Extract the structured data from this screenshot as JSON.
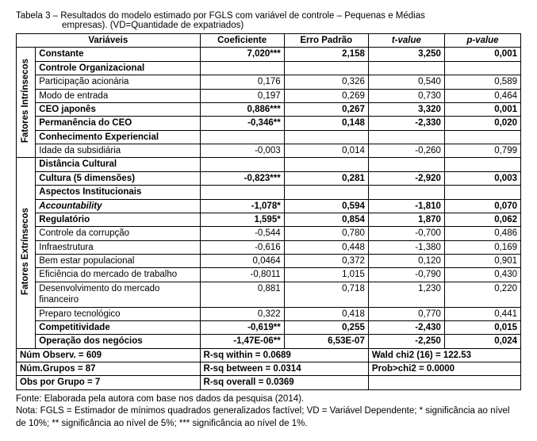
{
  "caption": {
    "line1": "Tabela 3 – Resultados do modelo estimado por FGLS com variável de controle – Pequenas e Médias",
    "line2": "empresas). (VD=Quantidade de expatriados)"
  },
  "headers": {
    "var": "Variáveis",
    "coef": "Coeficiente",
    "se": "Erro Padrão",
    "t": "t-value",
    "p": "p-value"
  },
  "side": {
    "intr": "Fatores Intrínsecos",
    "extr": "Fatores Extrínsecos"
  },
  "rows": {
    "constante": {
      "label": "Constante",
      "coef": "7,020***",
      "se": "2,158",
      "t": "3,250",
      "p": "0,001",
      "b": true
    },
    "grp_ctrl": {
      "label": "Controle Organizacional"
    },
    "partic": {
      "label": "Participação acionária",
      "coef": "0,176",
      "se": "0,326",
      "t": "0,540",
      "p": "0,589"
    },
    "modo": {
      "label": "Modo de entrada",
      "coef": "0,197",
      "se": "0,269",
      "t": "0,730",
      "p": "0,464"
    },
    "ceojap": {
      "label": "CEO japonês",
      "coef": "0,886***",
      "se": "0,267",
      "t": "3,320",
      "p": "0,001",
      "b": true
    },
    "permceo": {
      "label": "Permanência do CEO",
      "coef": "-0,346**",
      "se": "0,148",
      "t": "-2,330",
      "p": "0,020",
      "b": true
    },
    "grp_conh": {
      "label": "Conhecimento Experiencial"
    },
    "idade": {
      "label": "Idade da subsidiária",
      "coef": "-0,003",
      "se": "0,014",
      "t": "-0,260",
      "p": "0,799"
    },
    "grp_dist": {
      "label": "Distância Cultural"
    },
    "cult5": {
      "label": "Cultura (5 dimensões)",
      "coef": "-0,823***",
      "se": "0,281",
      "t": "-2,920",
      "p": "0,003",
      "b": true
    },
    "grp_inst": {
      "label": "Aspectos Institucionais"
    },
    "account": {
      "label": "Accountability",
      "coef": "-1,078*",
      "se": "0,594",
      "t": "-1,810",
      "p": "0,070",
      "b": true,
      "i": true
    },
    "regul": {
      "label": "Regulatório",
      "coef": "1,595*",
      "se": "0,854",
      "t": "1,870",
      "p": "0,062",
      "b": true
    },
    "corrup": {
      "label": "Controle da corrupção",
      "coef": "-0,544",
      "se": "0,780",
      "t": "-0,700",
      "p": "0,486"
    },
    "infra": {
      "label": "Infraestrutura",
      "coef": "-0,616",
      "se": "0,448",
      "t": "-1,380",
      "p": "0,169"
    },
    "bemestar": {
      "label": "Bem estar populacional",
      "coef": "0,0464",
      "se": "0,372",
      "t": "0,120",
      "p": "0,901"
    },
    "eficmt": {
      "label": "Eficiência do mercado de trabalho",
      "coef": "-0,8011",
      "se": "1,015",
      "t": "-0,790",
      "p": "0,430"
    },
    "desmf": {
      "label": "Desenvolvimento do mercado financeiro",
      "coef": "0,881",
      "se": "0,718",
      "t": "1,230",
      "p": "0,220"
    },
    "preptec": {
      "label": "Preparo tecnológico",
      "coef": "0,322",
      "se": "0,418",
      "t": "0,770",
      "p": "0,441"
    },
    "compet": {
      "label": "Competitividade",
      "coef": "-0,619**",
      "se": "0,255",
      "t": "-2,430",
      "p": "0,015",
      "b": true
    },
    "oper": {
      "label": "Operação dos negócios",
      "coef": "-1,47E-06**",
      "se": "6,53E-07",
      "t": "-2,250",
      "p": "0,024",
      "b": true
    }
  },
  "summary": {
    "l1a": "Núm Observ. = 609",
    "l1b": "R-sq within = 0.0689",
    "l1c": "Wald chi2 (16) = 122.53",
    "l2a": "Núm.Grupos = 87",
    "l2b": "R-sq between = 0.0314",
    "l2c": "Prob>chi2 = 0.0000",
    "l3a": "Obs por Grupo = 7",
    "l3b": "R-sq overall = 0.0369"
  },
  "footnotes": {
    "f1": "Fonte: Elaborada pela autora com base nos dados da pesquisa (2014).",
    "f2": "Nota: FGLS = Estimador de mínimos quadrados generalizados factível; VD = Variável Dependente; * significância ao nível de 10%; ** significância ao nível de 5%; *** significância ao nível de 1%."
  }
}
